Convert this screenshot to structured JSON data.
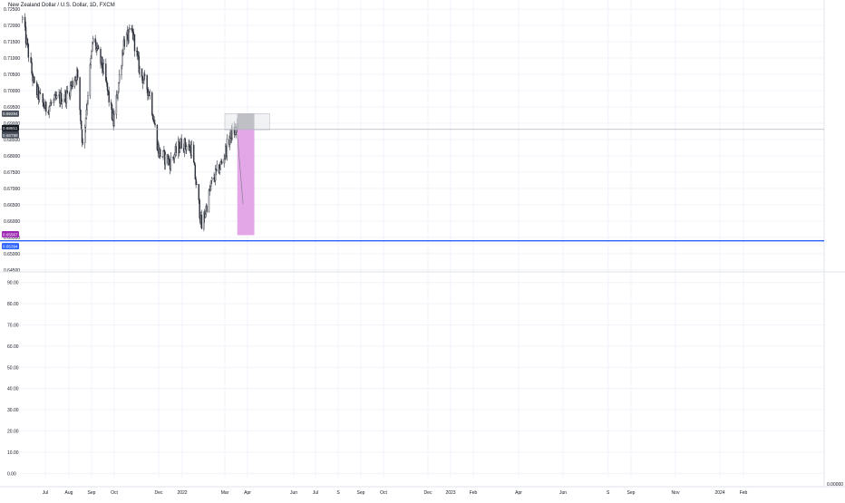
{
  "header": {
    "symbol_title": "New Zealand Dollar / U.S. Dollar, 1D, FXCM"
  },
  "price_pane": {
    "y_ticks": [
      "0.72500",
      "0.72000",
      "0.71500",
      "0.71000",
      "0.70500",
      "0.70000",
      "0.69500",
      "0.69000",
      "0.68500",
      "0.68000",
      "0.67500",
      "0.67000",
      "0.66500",
      "0.66000",
      "0.65500",
      "0.65000",
      "0.64500"
    ],
    "current_price_label": "0.68811",
    "countdown_label": "09:54:50",
    "box_top_label": "0.69294",
    "box_mid_label": "0.68799",
    "target_label": "0.65567",
    "line_label": "0.65394",
    "current_price": 0.68811,
    "line_price": 0.65394,
    "entry_box": {
      "x_from": "2022-03-01",
      "x_to": "2022-04-30",
      "top": 0.69294,
      "bottom": 0.68799
    },
    "stop_zone": {
      "x_from": "2022-03-18",
      "x_to": "2022-04-10",
      "top": 0.69294,
      "bottom": 0.68811
    },
    "target_zone": {
      "x_from": "2022-03-18",
      "x_to": "2022-04-10",
      "top": 0.68811,
      "bottom": 0.65567
    },
    "arrow": {
      "x_from": "2022-03-18",
      "y_from": 0.6865,
      "x_to": "2022-03-26",
      "y_to": 0.6652
    },
    "ylim": [
      0.6444,
      0.7278
    ]
  },
  "indicator_pane": {
    "y_ticks": [
      "90.00",
      "80.00",
      "70.00",
      "60.00",
      "50.00",
      "40.00",
      "30.00",
      "20.00",
      "10.00",
      "0.00"
    ],
    "ylim": [
      -2,
      95
    ]
  },
  "time_axis": {
    "ticks": [
      "Jul",
      "Aug",
      "Sep",
      "Oct",
      "Dec",
      "2022",
      "Mar",
      "Apr",
      "Jun",
      "Jul",
      "S",
      "Sep",
      "Oct",
      "Dec",
      "2023",
      "Feb",
      "Apr",
      "Jun",
      "S",
      "Sep",
      "Nov",
      "2024",
      "Feb"
    ],
    "extra_label": "0.00000"
  },
  "colors": {
    "background": "#ffffff",
    "candle": "#2a2e39",
    "grid": "#f0f3fa",
    "line": "#2962ff",
    "target_fill": "#e1a2e6",
    "stop_fill": "#9598a1",
    "box_fill": "#e8e9ec",
    "label_dark": "#131722",
    "label_grey": "#4c525e",
    "label_purple": "#9c27b0"
  },
  "chart_data": {
    "type": "candlestick",
    "symbol": "NZDUSD",
    "ylim": [
      0.6444,
      0.7278
    ],
    "series": [
      {
        "name": "NZDUSD",
        "values": [
          [
            "2021-06-04",
            0.7218
          ],
          [
            "2021-06-18",
            0.701
          ],
          [
            "2021-07-01",
            0.6945
          ],
          [
            "2021-07-15",
            0.697
          ],
          [
            "2021-07-29",
            0.6985
          ],
          [
            "2021-08-12",
            0.7055
          ],
          [
            "2021-08-20",
            0.683
          ],
          [
            "2021-09-03",
            0.716
          ],
          [
            "2021-09-17",
            0.706
          ],
          [
            "2021-09-30",
            0.69
          ],
          [
            "2021-10-14",
            0.715
          ],
          [
            "2021-10-26",
            0.718
          ],
          [
            "2021-11-05",
            0.706
          ],
          [
            "2021-11-19",
            0.699
          ],
          [
            "2021-12-01",
            0.681
          ],
          [
            "2021-12-16",
            0.678
          ],
          [
            "2021-12-31",
            0.684
          ],
          [
            "2022-01-14",
            0.682
          ],
          [
            "2022-01-28",
            0.658
          ],
          [
            "2022-02-11",
            0.672
          ],
          [
            "2022-02-25",
            0.678
          ],
          [
            "2022-03-10",
            0.687
          ],
          [
            "2022-03-18",
            0.6881
          ]
        ]
      }
    ]
  }
}
